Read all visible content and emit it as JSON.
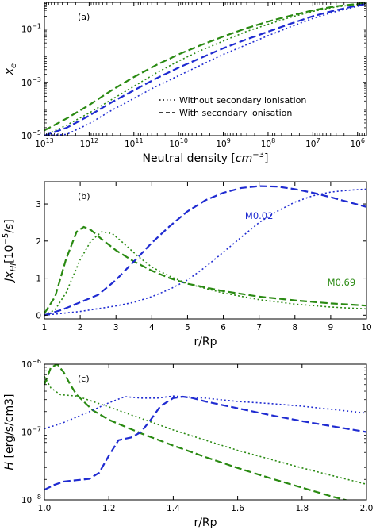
{
  "colors": {
    "blue": "#1f2bd1",
    "green": "#2a8a12"
  },
  "chart_data": [
    {
      "id": "a",
      "type": "line",
      "panel_label": "(a)",
      "xlabel": "Neutral density [cm⁻³]",
      "ylabel": "x_e",
      "xscale": "log",
      "yscale": "log",
      "x_reversed": true,
      "xlim_log10": [
        13,
        5.8
      ],
      "ylim_log10": [
        -5,
        0
      ],
      "xticks": [
        {
          "v": 13,
          "label": "10^13"
        },
        {
          "v": 12,
          "label": "10^12"
        },
        {
          "v": 11,
          "label": "10^11"
        },
        {
          "v": 10,
          "label": "10^10"
        },
        {
          "v": 9,
          "label": "10^9"
        },
        {
          "v": 8,
          "label": "10^8"
        },
        {
          "v": 7,
          "label": "10^7"
        },
        {
          "v": 6,
          "label": "10^6"
        }
      ],
      "yticks": [
        {
          "v": -5,
          "label": "10^-5"
        },
        {
          "v": -3,
          "label": "10^-3"
        },
        {
          "v": -1,
          "label": "10^-1"
        }
      ],
      "legend": [
        {
          "style": "dotted",
          "label": "Without secondary ionisation"
        },
        {
          "style": "dashed",
          "label": "With secondary ionisation"
        }
      ],
      "series": [
        {
          "color": "green",
          "style": "dashed",
          "x": [
            13,
            12.5,
            12,
            11.5,
            11,
            10.5,
            10,
            9.5,
            9,
            8.5,
            8,
            7.5,
            7,
            6.5,
            6,
            5.8
          ],
          "y": [
            -4.8,
            -4.35,
            -3.85,
            -3.3,
            -2.8,
            -2.35,
            -1.95,
            -1.6,
            -1.28,
            -0.98,
            -0.72,
            -0.5,
            -0.3,
            -0.15,
            -0.06,
            -0.03
          ]
        },
        {
          "color": "green",
          "style": "dotted",
          "x": [
            13,
            12.5,
            12,
            11.5,
            11,
            10.5,
            10,
            9.5,
            9,
            8.5,
            8,
            7.5,
            7,
            6.5,
            6,
            5.8
          ],
          "y": [
            -5.0,
            -4.6,
            -4.15,
            -3.65,
            -3.15,
            -2.65,
            -2.2,
            -1.8,
            -1.45,
            -1.1,
            -0.82,
            -0.56,
            -0.34,
            -0.18,
            -0.07,
            -0.04
          ]
        },
        {
          "color": "blue",
          "style": "dashed",
          "x": [
            13,
            12.5,
            12,
            11.5,
            11,
            10.5,
            10,
            9.5,
            9,
            8.5,
            8,
            7.5,
            7,
            6.5,
            6,
            5.8
          ],
          "y": [
            -5.0,
            -4.7,
            -4.25,
            -3.75,
            -3.3,
            -2.85,
            -2.45,
            -2.08,
            -1.72,
            -1.4,
            -1.1,
            -0.8,
            -0.52,
            -0.3,
            -0.12,
            -0.06
          ]
        },
        {
          "color": "blue",
          "style": "dotted",
          "x": [
            13,
            12.5,
            12,
            11.5,
            11,
            10.5,
            10,
            9.5,
            9,
            8.5,
            8,
            7.5,
            7,
            6.5,
            6,
            5.8
          ],
          "y": [
            -5.0,
            -4.95,
            -4.55,
            -4.05,
            -3.6,
            -3.15,
            -2.75,
            -2.35,
            -1.95,
            -1.6,
            -1.25,
            -0.92,
            -0.6,
            -0.35,
            -0.15,
            -0.08
          ]
        }
      ]
    },
    {
      "id": "b",
      "type": "line",
      "panel_label": "(b)",
      "xlabel": "r/Rp",
      "ylabel": "Jx_HI [10⁻⁵/s]",
      "xlim": [
        1,
        10
      ],
      "ylim": [
        -0.1,
        3.6
      ],
      "xticks": [
        1,
        2,
        3,
        4,
        5,
        6,
        7,
        8,
        9,
        10
      ],
      "yticks": [
        0,
        1,
        2,
        3
      ],
      "annotations": [
        {
          "text": "M0.02",
          "color": "blue",
          "x": 7.0,
          "y": 2.6
        },
        {
          "text": "M0.69",
          "color": "green",
          "x": 9.3,
          "y": 0.8
        }
      ],
      "series": [
        {
          "color": "green",
          "style": "dashed",
          "x": [
            1,
            1.3,
            1.6,
            1.9,
            2.1,
            2.3,
            2.6,
            3,
            3.5,
            4,
            4.5,
            5,
            6,
            7,
            8,
            9,
            10
          ],
          "y": [
            0.05,
            0.5,
            1.5,
            2.25,
            2.38,
            2.3,
            2.05,
            1.75,
            1.45,
            1.2,
            1.0,
            0.85,
            0.65,
            0.5,
            0.4,
            0.32,
            0.26
          ]
        },
        {
          "color": "green",
          "style": "dotted",
          "x": [
            1,
            1.3,
            1.6,
            2,
            2.3,
            2.6,
            2.9,
            3.2,
            3.6,
            4,
            4.5,
            5,
            6,
            7,
            8,
            9,
            10
          ],
          "y": [
            0.0,
            0.15,
            0.6,
            1.5,
            2.0,
            2.25,
            2.2,
            1.95,
            1.6,
            1.3,
            1.05,
            0.85,
            0.6,
            0.42,
            0.3,
            0.22,
            0.17
          ]
        },
        {
          "color": "blue",
          "style": "dashed",
          "x": [
            1,
            1.5,
            2,
            2.5,
            3,
            3.5,
            4,
            4.5,
            5,
            5.5,
            6,
            6.5,
            7,
            7.5,
            8,
            8.5,
            9,
            9.5,
            10
          ],
          "y": [
            0.0,
            0.15,
            0.35,
            0.55,
            0.95,
            1.45,
            1.95,
            2.4,
            2.8,
            3.1,
            3.3,
            3.43,
            3.48,
            3.47,
            3.4,
            3.3,
            3.18,
            3.05,
            2.92
          ]
        },
        {
          "color": "blue",
          "style": "dotted",
          "x": [
            1,
            2,
            3,
            3.5,
            4,
            4.5,
            5,
            5.5,
            6,
            6.5,
            7,
            7.5,
            8,
            8.5,
            9,
            9.5,
            10
          ],
          "y": [
            0.0,
            0.1,
            0.25,
            0.35,
            0.5,
            0.7,
            0.95,
            1.3,
            1.7,
            2.1,
            2.5,
            2.8,
            3.05,
            3.22,
            3.32,
            3.37,
            3.4
          ]
        }
      ]
    },
    {
      "id": "c",
      "type": "line",
      "panel_label": "(c)",
      "xlabel": "r/Rp",
      "ylabel": "H [erg/s/cm3]",
      "yscale": "log",
      "xlim": [
        1.0,
        2.0
      ],
      "ylim_log10": [
        -8,
        -6
      ],
      "xticks": [
        {
          "v": 1.0,
          "label": "1.0"
        },
        {
          "v": 1.2,
          "label": "1.2"
        },
        {
          "v": 1.4,
          "label": "1.4"
        },
        {
          "v": 1.6,
          "label": "1.6"
        },
        {
          "v": 1.8,
          "label": "1.8"
        },
        {
          "v": 2.0,
          "label": "2.0"
        }
      ],
      "yticks": [
        {
          "v": -8,
          "label": "10^-8"
        },
        {
          "v": -7,
          "label": "10^-7"
        },
        {
          "v": -6,
          "label": "10^-6"
        }
      ],
      "series": [
        {
          "color": "green",
          "style": "dashed",
          "x": [
            1.0,
            1.02,
            1.04,
            1.06,
            1.08,
            1.1,
            1.15,
            1.2,
            1.3,
            1.4,
            1.5,
            1.6,
            1.7,
            1.8,
            1.9,
            2.0
          ],
          "y": [
            -6.3,
            -6.05,
            -6.0,
            -6.12,
            -6.3,
            -6.45,
            -6.68,
            -6.82,
            -7.02,
            -7.2,
            -7.37,
            -7.53,
            -7.68,
            -7.82,
            -7.96,
            -8.08
          ]
        },
        {
          "color": "green",
          "style": "dotted",
          "x": [
            1.0,
            1.02,
            1.05,
            1.1,
            1.15,
            1.2,
            1.3,
            1.4,
            1.5,
            1.6,
            1.7,
            1.8,
            1.9,
            2.0
          ],
          "y": [
            -6.18,
            -6.35,
            -6.45,
            -6.47,
            -6.55,
            -6.63,
            -6.8,
            -6.97,
            -7.12,
            -7.27,
            -7.4,
            -7.53,
            -7.65,
            -7.77
          ]
        },
        {
          "color": "blue",
          "style": "dashed",
          "x": [
            1.0,
            1.03,
            1.06,
            1.1,
            1.14,
            1.17,
            1.2,
            1.23,
            1.27,
            1.3,
            1.33,
            1.36,
            1.4,
            1.43,
            1.46,
            1.5,
            1.6,
            1.7,
            1.8,
            1.9,
            2.0
          ],
          "y": [
            -7.85,
            -7.78,
            -7.73,
            -7.71,
            -7.69,
            -7.6,
            -7.35,
            -7.12,
            -7.08,
            -7.0,
            -6.82,
            -6.62,
            -6.5,
            -6.48,
            -6.5,
            -6.55,
            -6.65,
            -6.75,
            -6.84,
            -6.92,
            -7.0
          ]
        },
        {
          "color": "blue",
          "style": "dotted",
          "x": [
            1.0,
            1.05,
            1.1,
            1.15,
            1.2,
            1.25,
            1.3,
            1.35,
            1.4,
            1.5,
            1.6,
            1.7,
            1.8,
            1.9,
            2.0
          ],
          "y": [
            -6.95,
            -6.88,
            -6.78,
            -6.68,
            -6.57,
            -6.48,
            -6.5,
            -6.5,
            -6.47,
            -6.5,
            -6.55,
            -6.58,
            -6.62,
            -6.67,
            -6.72
          ]
        }
      ]
    }
  ]
}
